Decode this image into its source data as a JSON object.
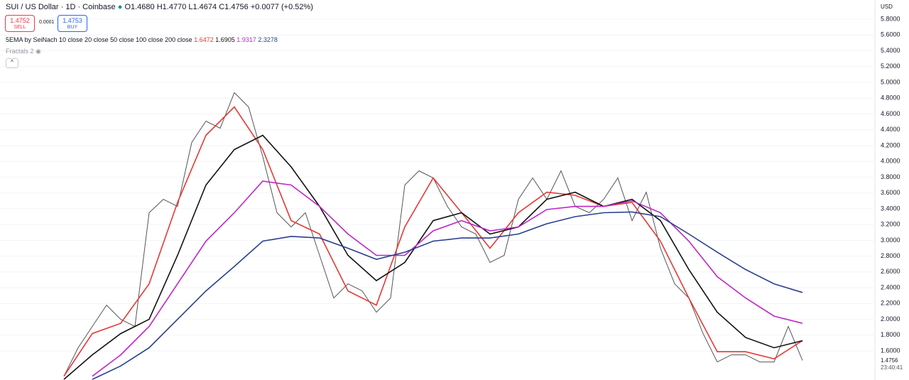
{
  "header": {
    "symbol": "SUI / US Dollar · 1D · Coinbase",
    "open": "O1.4680",
    "high": "H1.4770",
    "low": "L1.4674",
    "close": "C1.4756",
    "change": "+0.0077 (+0.52%)"
  },
  "trade": {
    "sell_price": "1.4752",
    "sell": "SELL",
    "spread": "0.0001",
    "buy_price": "1.4753",
    "buy": "BUY"
  },
  "indicators": {
    "ema_label": "5EMA by SeiNach 10 close 20 close 50 close 100 close 200 close",
    "ema_values": [
      "1.6472",
      "1.6905",
      "1.9317",
      "2.3278"
    ],
    "fractals": "Fractals 2"
  },
  "axis": {
    "currency": "USD",
    "last_price": "1.4756",
    "countdown": "23:40:41"
  },
  "chart_data": {
    "type": "line",
    "ylim": [
      1.232,
      6.043
    ],
    "yticks": [
      {
        "value": 1.6,
        "label": "1.6000"
      },
      {
        "value": 1.8,
        "label": "1.8000"
      },
      {
        "value": 2.0,
        "label": "2.0000"
      },
      {
        "value": 2.2,
        "label": "2.2000"
      },
      {
        "value": 2.4,
        "label": "2.4000"
      },
      {
        "value": 2.6,
        "label": "2.6000"
      },
      {
        "value": 2.8,
        "label": "2.8000"
      },
      {
        "value": 3.0,
        "label": "3.0000"
      },
      {
        "value": 3.2,
        "label": "3.2000"
      },
      {
        "value": 3.4,
        "label": "3.4000"
      },
      {
        "value": 3.6,
        "label": "3.6000"
      },
      {
        "value": 3.8,
        "label": "3.8000"
      },
      {
        "value": 4.0,
        "label": "4.0000"
      },
      {
        "value": 4.2,
        "label": "4.2000"
      },
      {
        "value": 4.4,
        "label": "4.4000"
      },
      {
        "value": 4.6,
        "label": "4.6000"
      },
      {
        "value": 4.8,
        "label": "4.8000"
      },
      {
        "value": 5.0,
        "label": "5.0000"
      },
      {
        "value": 5.2,
        "label": "5.2000"
      },
      {
        "value": 5.4,
        "label": "5.4000"
      },
      {
        "value": 5.6,
        "label": "5.6000"
      },
      {
        "value": 5.8,
        "label": "5.8000"
      }
    ],
    "grid": true,
    "series": [
      {
        "color": "#555555",
        "values": [
          1.28,
          1.64,
          1.91,
          2.18,
          2.0,
          1.91,
          3.35,
          3.52,
          3.43,
          4.24,
          4.51,
          4.42,
          4.87,
          4.69,
          4.06,
          3.35,
          3.17,
          3.35,
          2.81,
          2.27,
          2.45,
          2.36,
          2.09,
          2.27,
          3.7,
          3.88,
          3.79,
          3.43,
          3.17,
          3.08,
          2.72,
          2.81,
          3.52,
          3.79,
          3.52,
          3.88,
          3.43,
          3.35,
          3.52,
          3.79,
          3.25,
          3.61,
          2.9,
          2.45,
          2.27,
          1.82,
          1.46,
          1.55,
          1.55,
          1.46,
          1.46,
          1.91,
          1.48
        ]
      },
      {
        "color": "#e53935",
        "values": [
          1.28,
          1.82,
          1.95,
          2.45,
          3.48,
          4.33,
          4.69,
          4.15,
          3.25,
          3.08,
          2.36,
          2.18,
          3.17,
          3.79,
          3.35,
          2.9,
          3.35,
          3.61,
          3.57,
          3.43,
          3.48,
          2.99,
          2.27,
          1.59,
          1.59,
          1.5,
          1.73
        ]
      },
      {
        "color": "#111111",
        "values": [
          1.24,
          1.55,
          1.82,
          2.0,
          2.81,
          3.7,
          4.15,
          4.33,
          3.93,
          3.43,
          2.81,
          2.49,
          2.72,
          3.25,
          3.35,
          3.08,
          3.17,
          3.52,
          3.61,
          3.43,
          3.52,
          3.25,
          2.63,
          2.09,
          1.77,
          1.64,
          1.73
        ]
      },
      {
        "color": "#c026c9",
        "values": [
          null,
          1.28,
          1.55,
          1.91,
          2.45,
          2.99,
          3.35,
          3.75,
          3.7,
          3.43,
          3.08,
          2.81,
          2.81,
          3.12,
          3.25,
          3.12,
          3.17,
          3.39,
          3.43,
          3.43,
          3.5,
          3.35,
          2.99,
          2.54,
          2.27,
          2.04,
          1.95
        ]
      },
      {
        "color": "#2a3f8f",
        "values": [
          null,
          1.24,
          1.41,
          1.64,
          2.0,
          2.36,
          2.67,
          2.99,
          3.05,
          3.03,
          2.9,
          2.76,
          2.85,
          2.99,
          3.03,
          3.03,
          3.08,
          3.21,
          3.3,
          3.35,
          3.36,
          3.3,
          3.08,
          2.85,
          2.63,
          2.45,
          2.34
        ]
      }
    ]
  }
}
